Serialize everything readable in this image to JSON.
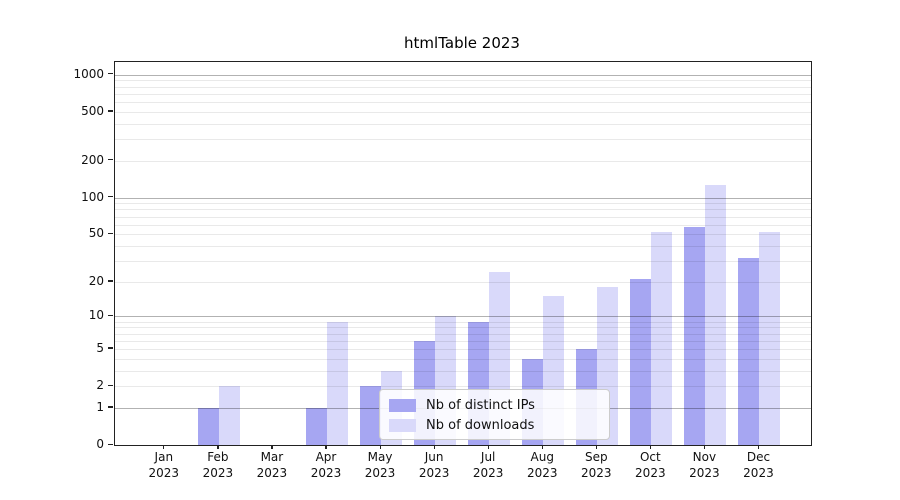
{
  "title": "htmlTable 2023",
  "colors": {
    "bar_distinct_ips": "#a6a6f2",
    "bar_downloads": "#d9d9fa",
    "axis": "#222222",
    "background": "#ffffff"
  },
  "chart_data": {
    "type": "bar",
    "title": "htmlTable 2023",
    "xlabel": "",
    "ylabel": "",
    "x_months": [
      "Jan",
      "Feb",
      "Mar",
      "Apr",
      "May",
      "Jun",
      "Jul",
      "Aug",
      "Sep",
      "Oct",
      "Nov",
      "Dec"
    ],
    "x_year": "2023",
    "categories": [
      "Jan 2023",
      "Feb 2023",
      "Mar 2023",
      "Apr 2023",
      "May 2023",
      "Jun 2023",
      "Jul 2023",
      "Aug 2023",
      "Sep 2023",
      "Oct 2023",
      "Nov 2023",
      "Dec 2023"
    ],
    "series": [
      {
        "name": "Nb of distinct IPs",
        "color": "#a6a6f2",
        "values": [
          0,
          1,
          0,
          1,
          2,
          6,
          9,
          4,
          5,
          21,
          57,
          32
        ]
      },
      {
        "name": "Nb of downloads",
        "color": "#d9d9fa",
        "values": [
          0,
          2,
          0,
          9,
          3,
          10,
          24,
          15,
          18,
          52,
          126,
          52
        ]
      }
    ],
    "y_ticks": [
      0,
      1,
      2,
      5,
      10,
      20,
      50,
      100,
      200,
      500,
      1000
    ],
    "y_major_gridlines": [
      1,
      10,
      100,
      1000
    ],
    "y_minor_gridlines": [
      2,
      3,
      4,
      5,
      6,
      7,
      8,
      9,
      20,
      30,
      40,
      50,
      60,
      70,
      80,
      90,
      200,
      300,
      400,
      500,
      600,
      700,
      800,
      900
    ],
    "scale": "log10(value+1)",
    "ylim": [
      0,
      1270
    ],
    "grid": true,
    "legend_position": "lower center inside plot"
  }
}
